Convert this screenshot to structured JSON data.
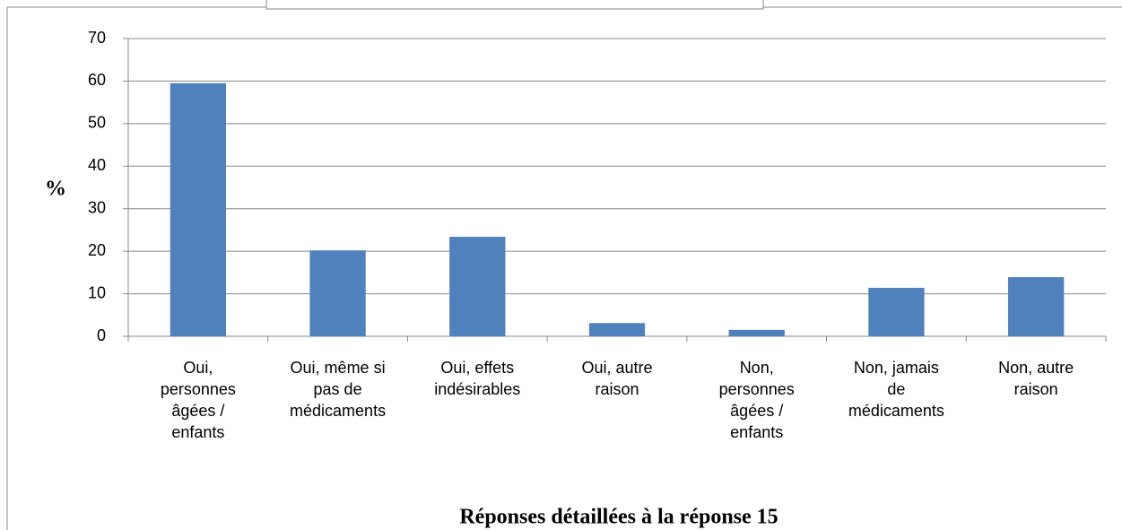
{
  "chart_data": {
    "type": "bar",
    "title": "Réponses détaillées à la réponse 15",
    "y_label": "%",
    "categories": [
      "Oui, personnes âgées / enfants",
      "Oui, même si pas de médicaments",
      "Oui, effets indésirables",
      "Oui, autre raison",
      "Non, personnes âgées / enfants",
      "Non, jamais de médicaments",
      "Non, autre raison"
    ],
    "values": [
      59.5,
      20.2,
      23.4,
      3.1,
      1.5,
      11.4,
      13.9
    ],
    "color": "#4f81bd",
    "ylim": [
      0,
      70
    ],
    "yticks": [
      0,
      10,
      20,
      30,
      40,
      50,
      60,
      70
    ],
    "grid": true
  }
}
